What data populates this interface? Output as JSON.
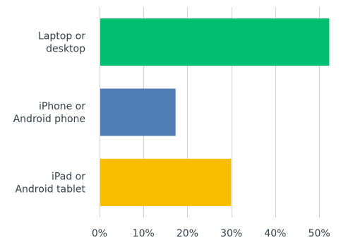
{
  "chart_data": {
    "type": "bar",
    "orientation": "horizontal",
    "categories": [
      "Laptop or desktop",
      "iPhone or Android phone",
      "iPad or Android tablet"
    ],
    "category_label_lines": [
      [
        "Laptop or",
        "desktop"
      ],
      [
        "iPhone or",
        "Android phone"
      ],
      [
        "iPad or",
        "Android tablet"
      ]
    ],
    "values": [
      52.3,
      17.3,
      29.9
    ],
    "colors": [
      "#00bf6f",
      "#507cb6",
      "#f9be00"
    ],
    "xlim": [
      0,
      54
    ],
    "x_ticks": [
      0,
      10,
      20,
      30,
      40,
      50
    ],
    "x_tick_labels": [
      "0%",
      "10%",
      "20%",
      "30%",
      "40%",
      "50%"
    ],
    "grid": true,
    "gridline_color": "#d0d2d3",
    "title": "",
    "xlabel": "",
    "ylabel": ""
  }
}
